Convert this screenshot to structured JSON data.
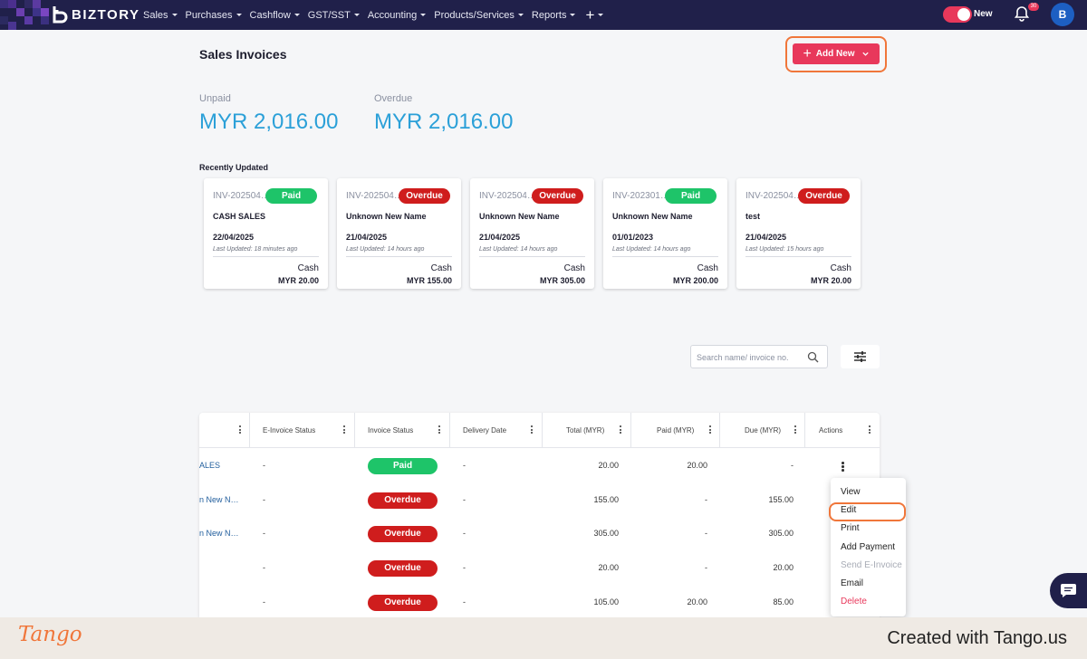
{
  "app": {
    "brand": "BIZTORY"
  },
  "nav": {
    "items": [
      "Sales",
      "Purchases",
      "Cashflow",
      "GST/SST",
      "Accounting",
      "Products/Services",
      "Reports"
    ],
    "plus": "+",
    "toggle_label": "New",
    "notification_count": "30",
    "avatar_initial": "B"
  },
  "header": {
    "title": "Sales Invoices",
    "add_new_label": "Add New"
  },
  "stats": {
    "unpaid_label": "Unpaid",
    "unpaid_value": "MYR 2,016.00",
    "overdue_label": "Overdue",
    "overdue_value": "MYR 2,016.00"
  },
  "recent": {
    "title": "Recently Updated",
    "cards": [
      {
        "invoice": "INV-202504…",
        "status": "Paid",
        "name": "CASH SALES",
        "date": "22/04/2025",
        "updated": "Last Updated: 18 minutes ago",
        "method": "Cash",
        "amount": "MYR 20.00"
      },
      {
        "invoice": "INV-202504…",
        "status": "Overdue",
        "name": "Unknown New Name",
        "date": "21/04/2025",
        "updated": "Last Updated: 14 hours ago",
        "method": "Cash",
        "amount": "MYR 155.00"
      },
      {
        "invoice": "INV-202504…",
        "status": "Overdue",
        "name": "Unknown New Name",
        "date": "21/04/2025",
        "updated": "Last Updated: 14 hours ago",
        "method": "Cash",
        "amount": "MYR 305.00"
      },
      {
        "invoice": "INV-202301…",
        "status": "Paid",
        "name": "Unknown New Name",
        "date": "01/01/2023",
        "updated": "Last Updated: 14 hours ago",
        "method": "Cash",
        "amount": "MYR 200.00"
      },
      {
        "invoice": "INV-202504…",
        "status": "Overdue",
        "name": "test",
        "date": "21/04/2025",
        "updated": "Last Updated: 15 hours ago",
        "method": "Cash",
        "amount": "MYR 20.00"
      }
    ]
  },
  "search": {
    "placeholder": "Search name/ invoice no."
  },
  "table": {
    "columns": [
      "",
      "E-Invoice Status",
      "Invoice Status",
      "Delivery Date",
      "Total (MYR)",
      "Paid (MYR)",
      "Due (MYR)",
      "Actions"
    ],
    "rows": [
      {
        "name": "ALES",
        "einvoice": "-",
        "status": "Paid",
        "delivery": "-",
        "total": "20.00",
        "paid": "20.00",
        "due": "-"
      },
      {
        "name": "n New N…",
        "einvoice": "-",
        "status": "Overdue",
        "delivery": "-",
        "total": "155.00",
        "paid": "-",
        "due": "155.00"
      },
      {
        "name": "n New N…",
        "einvoice": "-",
        "status": "Overdue",
        "delivery": "-",
        "total": "305.00",
        "paid": "-",
        "due": "305.00"
      },
      {
        "name": "",
        "einvoice": "-",
        "status": "Overdue",
        "delivery": "-",
        "total": "20.00",
        "paid": "-",
        "due": "20.00"
      },
      {
        "name": "",
        "einvoice": "-",
        "status": "Overdue",
        "delivery": "-",
        "total": "105.00",
        "paid": "20.00",
        "due": "85.00"
      }
    ]
  },
  "actions_menu": {
    "items": [
      "View",
      "Edit",
      "Print",
      "Add Payment",
      "Send E-Invoice",
      "Email",
      "Delete"
    ]
  },
  "footer": {
    "logo": "Tango",
    "credit": "Created with Tango.us"
  },
  "colors": {
    "nav_bg": "#20204a",
    "accent": "#e8385b",
    "paid": "#1ec469",
    "overdue": "#cf1d1d",
    "highlight": "#f0763a",
    "stat_value": "#2ba0d8"
  },
  "icons": {
    "search": "search-icon",
    "filter": "sliders-icon",
    "bell": "bell-icon",
    "chat": "chat-icon",
    "kebab": "kebab-icon"
  }
}
